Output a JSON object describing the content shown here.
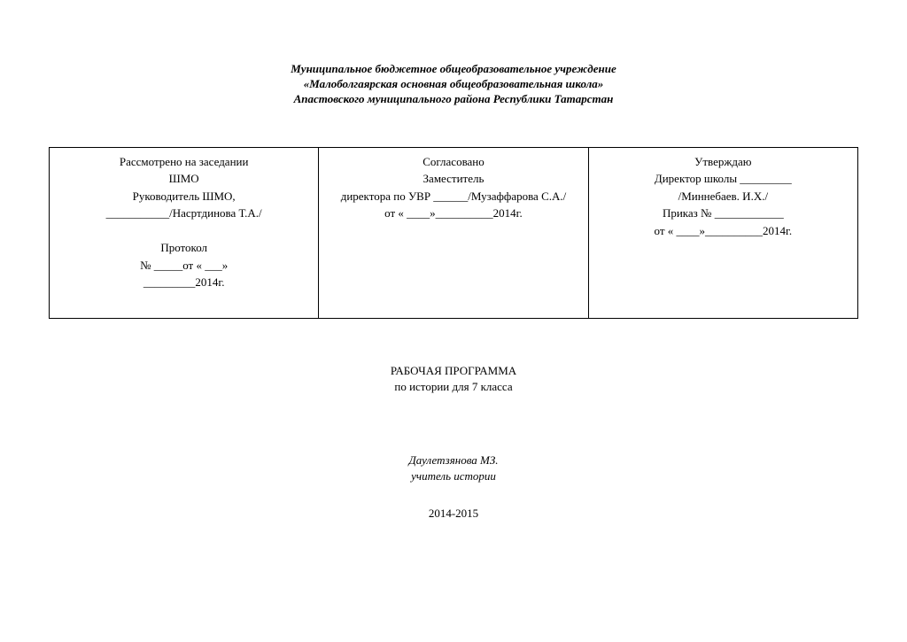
{
  "header": {
    "line1": "Муниципальное  бюджетное  общеобразовательное  учреждение",
    "line2": "«Малоболгаярская основная общеобразовательная школа»",
    "line3": "Апастовского муниципального района Республики Татарстан"
  },
  "approval": {
    "col1": {
      "l1": "Рассмотрено     на заседании",
      "l2": "ШМО",
      "l3": "Руководитель ШМО,",
      "l4": "___________/Насртдинова Т.А./",
      "l5": "",
      "l6": "Протокол",
      "l7": "№  _____от « ___»",
      "l8": "_________2014г."
    },
    "col2": {
      "l1": "Согласовано",
      "l2": "Заместитель",
      "l3": "директора по УВР  ______/Музаффарова С.А./",
      "l4": "от «  ____»__________2014г."
    },
    "col3": {
      "l1": "Утверждаю",
      "l2": "Директор школы _________",
      "l3": "/Миннебаев. И.Х./",
      "l4": "Приказ  № ____________",
      "l5": "от «  ____»__________2014г."
    }
  },
  "title": {
    "l1": "РАБОЧАЯ ПРОГРАММА",
    "l2": "по истории  для  7 класса"
  },
  "author": {
    "l1": "Даулетзянова МЗ.",
    "l2": "учитель истории"
  },
  "year": "2014-2015"
}
